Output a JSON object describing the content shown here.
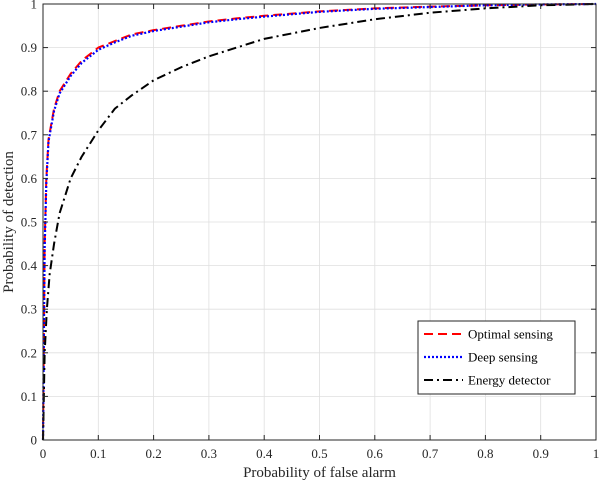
{
  "chart_data": {
    "type": "line",
    "title": "",
    "xlabel": "Probability of false alarm",
    "ylabel": "Probability of detection",
    "xlim": [
      0,
      1
    ],
    "ylim": [
      0,
      1
    ],
    "xticks": [
      "0",
      "0.1",
      "0.2",
      "0.3",
      "0.4",
      "0.5",
      "0.6",
      "0.7",
      "0.8",
      "0.9",
      "1"
    ],
    "yticks": [
      "0",
      "0.1",
      "0.2",
      "0.3",
      "0.4",
      "0.5",
      "0.6",
      "0.7",
      "0.8",
      "0.9",
      "1"
    ],
    "grid": true,
    "legend_position": "bottom-right",
    "series": [
      {
        "name": "Optimal sensing",
        "color": "#ff0000",
        "style": "dashed",
        "x": [
          0,
          0.003,
          0.006,
          0.01,
          0.02,
          0.03,
          0.05,
          0.07,
          0.1,
          0.13,
          0.16,
          0.2,
          0.25,
          0.3,
          0.35,
          0.4,
          0.5,
          0.6,
          0.7,
          0.8,
          0.9,
          1
        ],
        "y": [
          0,
          0.45,
          0.6,
          0.69,
          0.76,
          0.8,
          0.84,
          0.87,
          0.9,
          0.915,
          0.93,
          0.94,
          0.95,
          0.96,
          0.967,
          0.973,
          0.983,
          0.99,
          0.994,
          0.997,
          0.999,
          1
        ]
      },
      {
        "name": "Deep sensing",
        "color": "#0000ff",
        "style": "dotted",
        "x": [
          0,
          0.003,
          0.006,
          0.01,
          0.02,
          0.03,
          0.05,
          0.07,
          0.1,
          0.13,
          0.16,
          0.2,
          0.25,
          0.3,
          0.35,
          0.4,
          0.5,
          0.6,
          0.7,
          0.8,
          0.9,
          1
        ],
        "y": [
          0,
          0.44,
          0.59,
          0.685,
          0.755,
          0.795,
          0.835,
          0.865,
          0.895,
          0.912,
          0.927,
          0.938,
          0.948,
          0.958,
          0.965,
          0.971,
          0.982,
          0.989,
          0.993,
          0.997,
          0.999,
          1
        ]
      },
      {
        "name": "Energy detector",
        "color": "#000000",
        "style": "dashdot",
        "x": [
          0,
          0.003,
          0.007,
          0.012,
          0.02,
          0.03,
          0.05,
          0.07,
          0.1,
          0.13,
          0.16,
          0.2,
          0.25,
          0.3,
          0.35,
          0.4,
          0.5,
          0.6,
          0.7,
          0.8,
          0.9,
          1
        ],
        "y": [
          0,
          0.2,
          0.3,
          0.38,
          0.45,
          0.52,
          0.6,
          0.65,
          0.71,
          0.76,
          0.79,
          0.825,
          0.855,
          0.88,
          0.9,
          0.92,
          0.945,
          0.965,
          0.98,
          0.99,
          0.997,
          1
        ]
      }
    ]
  }
}
